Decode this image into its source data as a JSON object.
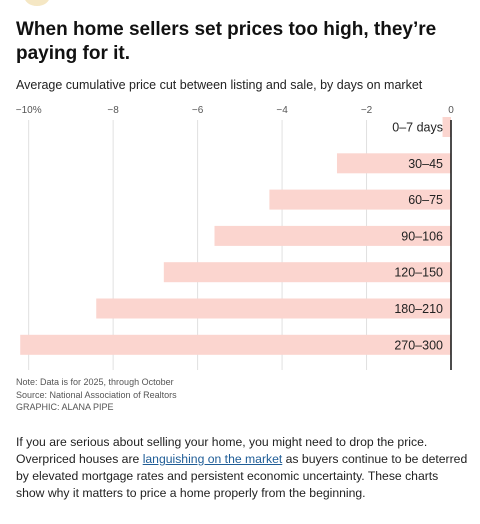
{
  "article": {
    "headline": "When home sellers set prices too high, they’re paying for it.",
    "body_before_link": "If you are serious about selling your home, you might need to drop the price. Overpriced houses are ",
    "link_text": "languishing on the market",
    "body_after_link": " as buyers continue to be deterred by elevated mortgage rates and persistent economic uncertainty. These charts show why it matters to price a home properly from the beginning."
  },
  "colors": {
    "bar": "#fbd5cf",
    "axis_line": "#111111",
    "grid": "#e0e0e0",
    "link": "#1e5c96"
  },
  "chart_data": {
    "type": "bar",
    "orientation": "horizontal",
    "title": "Average cumulative price cut between listing and sale, by days on market",
    "xlabel": "",
    "ylabel": "",
    "xlim": [
      -10.3,
      0
    ],
    "x_ticks": [
      -10,
      -8,
      -6,
      -4,
      -2,
      0
    ],
    "x_tick_labels": [
      "−10%",
      "−8",
      "−6",
      "−4",
      "−2",
      "0"
    ],
    "axis_position": "top",
    "grid": true,
    "categories": [
      "0–7 days",
      "30–45",
      "60–75",
      "90–106",
      "120–150",
      "180–210",
      "270–300"
    ],
    "values": [
      -0.2,
      -2.7,
      -4.3,
      -5.6,
      -6.8,
      -8.4,
      -10.2
    ],
    "notes": [
      "Note: Data is for 2025, through October",
      "Source: National Association of Realtors",
      "GRAPHIC: ALANA PIPE"
    ]
  }
}
